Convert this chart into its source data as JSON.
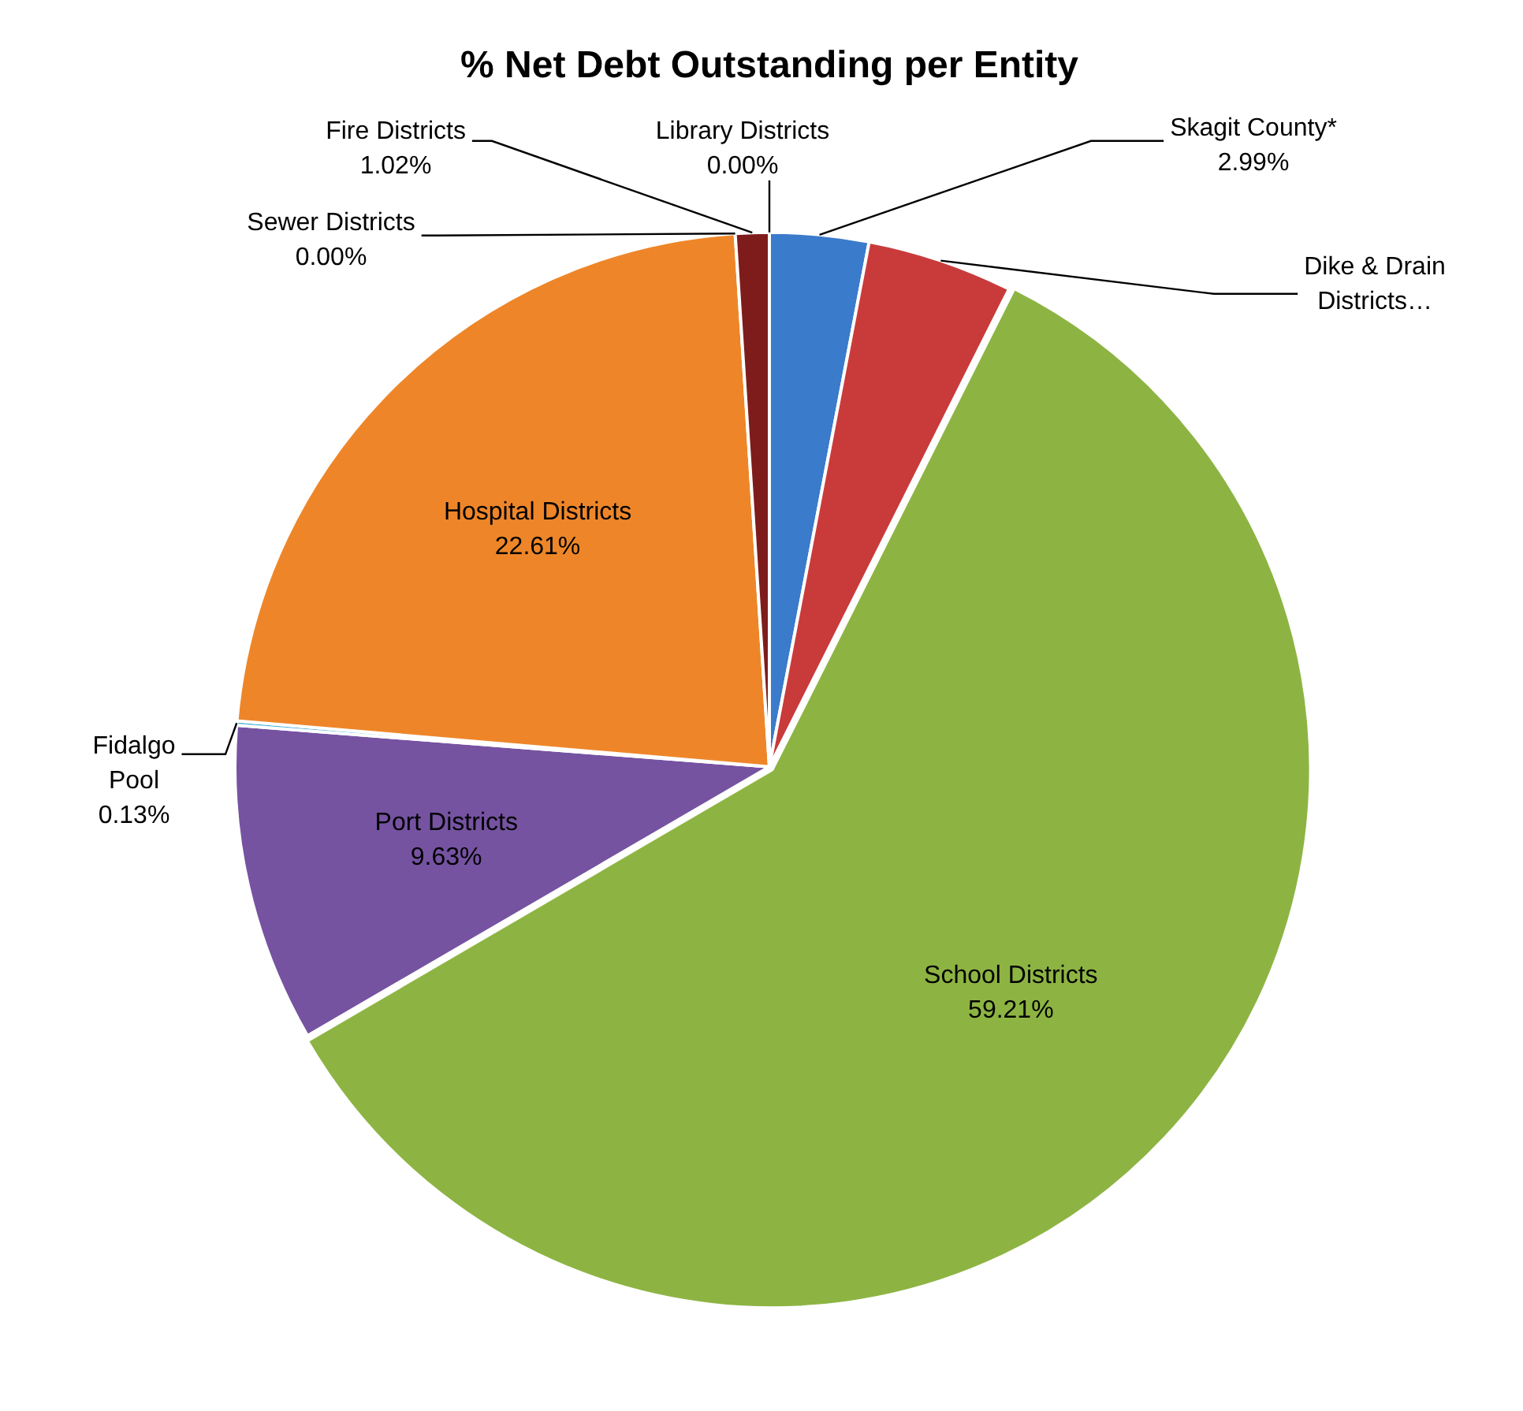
{
  "chart_data": {
    "type": "pie",
    "title": "% Net Debt Outstanding per Entity",
    "categories": [
      "Library Districts",
      "Skagit County*",
      "Dike & Drain Districts…",
      "School Districts",
      "Port Districts",
      "Fidalgo Pool",
      "Hospital Districts",
      "Sewer Districts",
      "Fire Districts"
    ],
    "values": [
      0.0,
      2.99,
      4.41,
      59.21,
      9.63,
      0.13,
      22.61,
      0.0,
      1.02
    ],
    "value_labels": [
      "0.00%",
      "2.99%",
      null,
      "59.21%",
      "9.63%",
      "0.13%",
      "22.61%",
      "0.00%",
      "1.02%"
    ],
    "colors": [
      "#4f81bd",
      "#3a7bcb",
      "#c93b3b",
      "#8db443",
      "#7553a1",
      "#45b0d4",
      "#ee8629",
      "#b0b0b0",
      "#7e1c1c"
    ],
    "legend": false
  }
}
